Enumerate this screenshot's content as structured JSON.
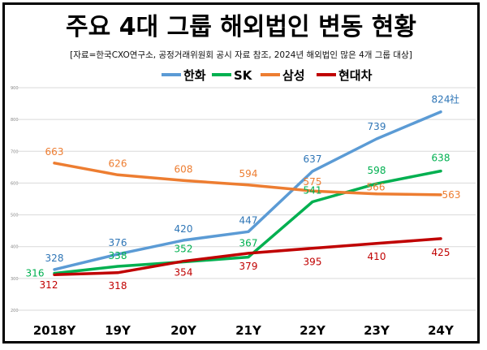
{
  "chart_data": {
    "type": "line",
    "title": "주요 4대 그룹 해외법인 변동 현황",
    "subtitle": "[자료=한국CXO연구소, 공정거래위원회 공시 자료 참조, 2024년 해외법인 많은 4개 그룹 대상]",
    "categories": [
      "2018Y",
      "19Y",
      "20Y",
      "21Y",
      "22Y",
      "23Y",
      "24Y"
    ],
    "ylim": [
      200,
      900
    ],
    "yticks": [
      200,
      300,
      400,
      500,
      600,
      700,
      800,
      900
    ],
    "grid": true,
    "legend_position": "top",
    "unit_suffix": "社",
    "series": [
      {
        "name": "한화",
        "color": "#5B9BD5",
        "label_color": "#2E75B6",
        "values": [
          328,
          376,
          420,
          447,
          637,
          739,
          824
        ]
      },
      {
        "name": "SK",
        "color": "#00B050",
        "label_color": "#00B050",
        "values": [
          316,
          338,
          352,
          367,
          541,
          598,
          638
        ]
      },
      {
        "name": "삼성",
        "color": "#ED7D31",
        "label_color": "#ED7D31",
        "values": [
          663,
          626,
          608,
          594,
          575,
          566,
          563
        ]
      },
      {
        "name": "현대차",
        "color": "#C00000",
        "label_color": "#C00000",
        "values": [
          312,
          318,
          354,
          379,
          395,
          410,
          425
        ]
      }
    ]
  }
}
